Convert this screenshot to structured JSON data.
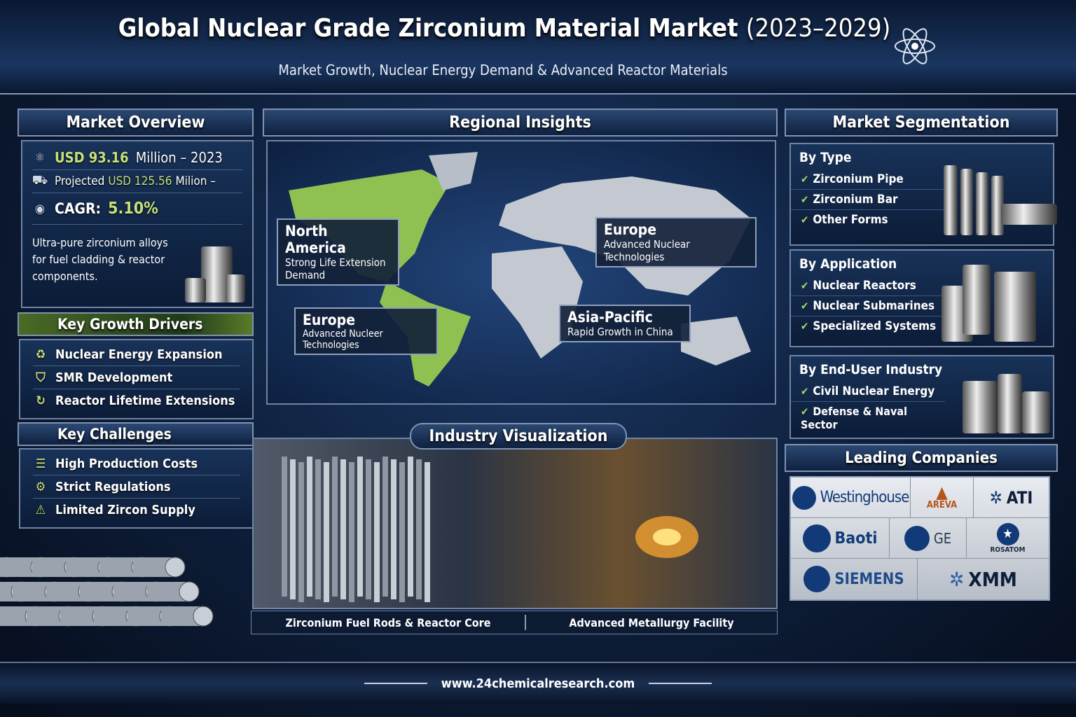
{
  "header": {
    "title": "Global Nuclear Grade Zirconium Material Market",
    "years": "(2023–2029)",
    "subtitle": "Market Growth, Nuclear Energy Demand & Advanced Reactor Materials",
    "icon": "atom-icon"
  },
  "overview": {
    "title": "Market Overview",
    "value_2023": "USD 93.16",
    "value_2023_suffix": "Million – 2023",
    "projected_prefix": "Projected",
    "projected_value": "USD 125.56",
    "projected_suffix": "Milion –",
    "cagr_label": "CAGR:",
    "cagr_value": "5.10%",
    "description": "Ultra-pure zirconium alloys for fuel cladding & reactor components."
  },
  "drivers": {
    "title": "Key Growth Drivers",
    "items": [
      "Nuclear Energy Expansion",
      "SMR Development",
      "Reactor Lifetime Extensions"
    ]
  },
  "challenges": {
    "title": "Key Challenges",
    "items": [
      "High Production Costs",
      "Strict Regulations",
      "Limited Zircon Supply"
    ]
  },
  "regional": {
    "title": "Regional Insights",
    "labels": [
      {
        "name": "North America",
        "desc": "Strong Life Extension Demand"
      },
      {
        "name": "Europe",
        "desc": "Advanced Nuclear Technologies"
      },
      {
        "name": "Europe",
        "desc": "Advanced Nucleer Technologies"
      },
      {
        "name": "Asia-Pacific",
        "desc": "Rapid Growth in China"
      }
    ]
  },
  "industry": {
    "title": "Industry Visualization",
    "captions": [
      "Zirconium Fuel Rods & Reactor Core",
      "Advanced Metallurgy Facility"
    ]
  },
  "segmentation": {
    "title": "Market Segmentation",
    "by_type": {
      "title": "By Type",
      "items": [
        "Zirconium Pipe",
        "Zirconium Bar",
        "Other Forms"
      ]
    },
    "by_application": {
      "title": "By Application",
      "items": [
        "Nuclear Reactors",
        "Nuclear Submarines",
        "Specialized Systems"
      ]
    },
    "by_end_user": {
      "title": "By End-User Industry",
      "items": [
        "Civil Nuclear Energy",
        "Defense & Naval Sector"
      ]
    }
  },
  "companies": {
    "title": "Leading Companies",
    "items": [
      "Westinghouse",
      "AREVA",
      "ATI",
      "Baoti",
      "GE",
      "ROSATOM",
      "SIEMENS",
      "XMM"
    ]
  },
  "colors": {
    "accent_green": "#c6e07a",
    "navy": "#0d1d38",
    "logo_blue": "#123a78",
    "areva_orange": "#b5561d"
  },
  "footer": {
    "url": "www.24chemicalresearch.com"
  }
}
